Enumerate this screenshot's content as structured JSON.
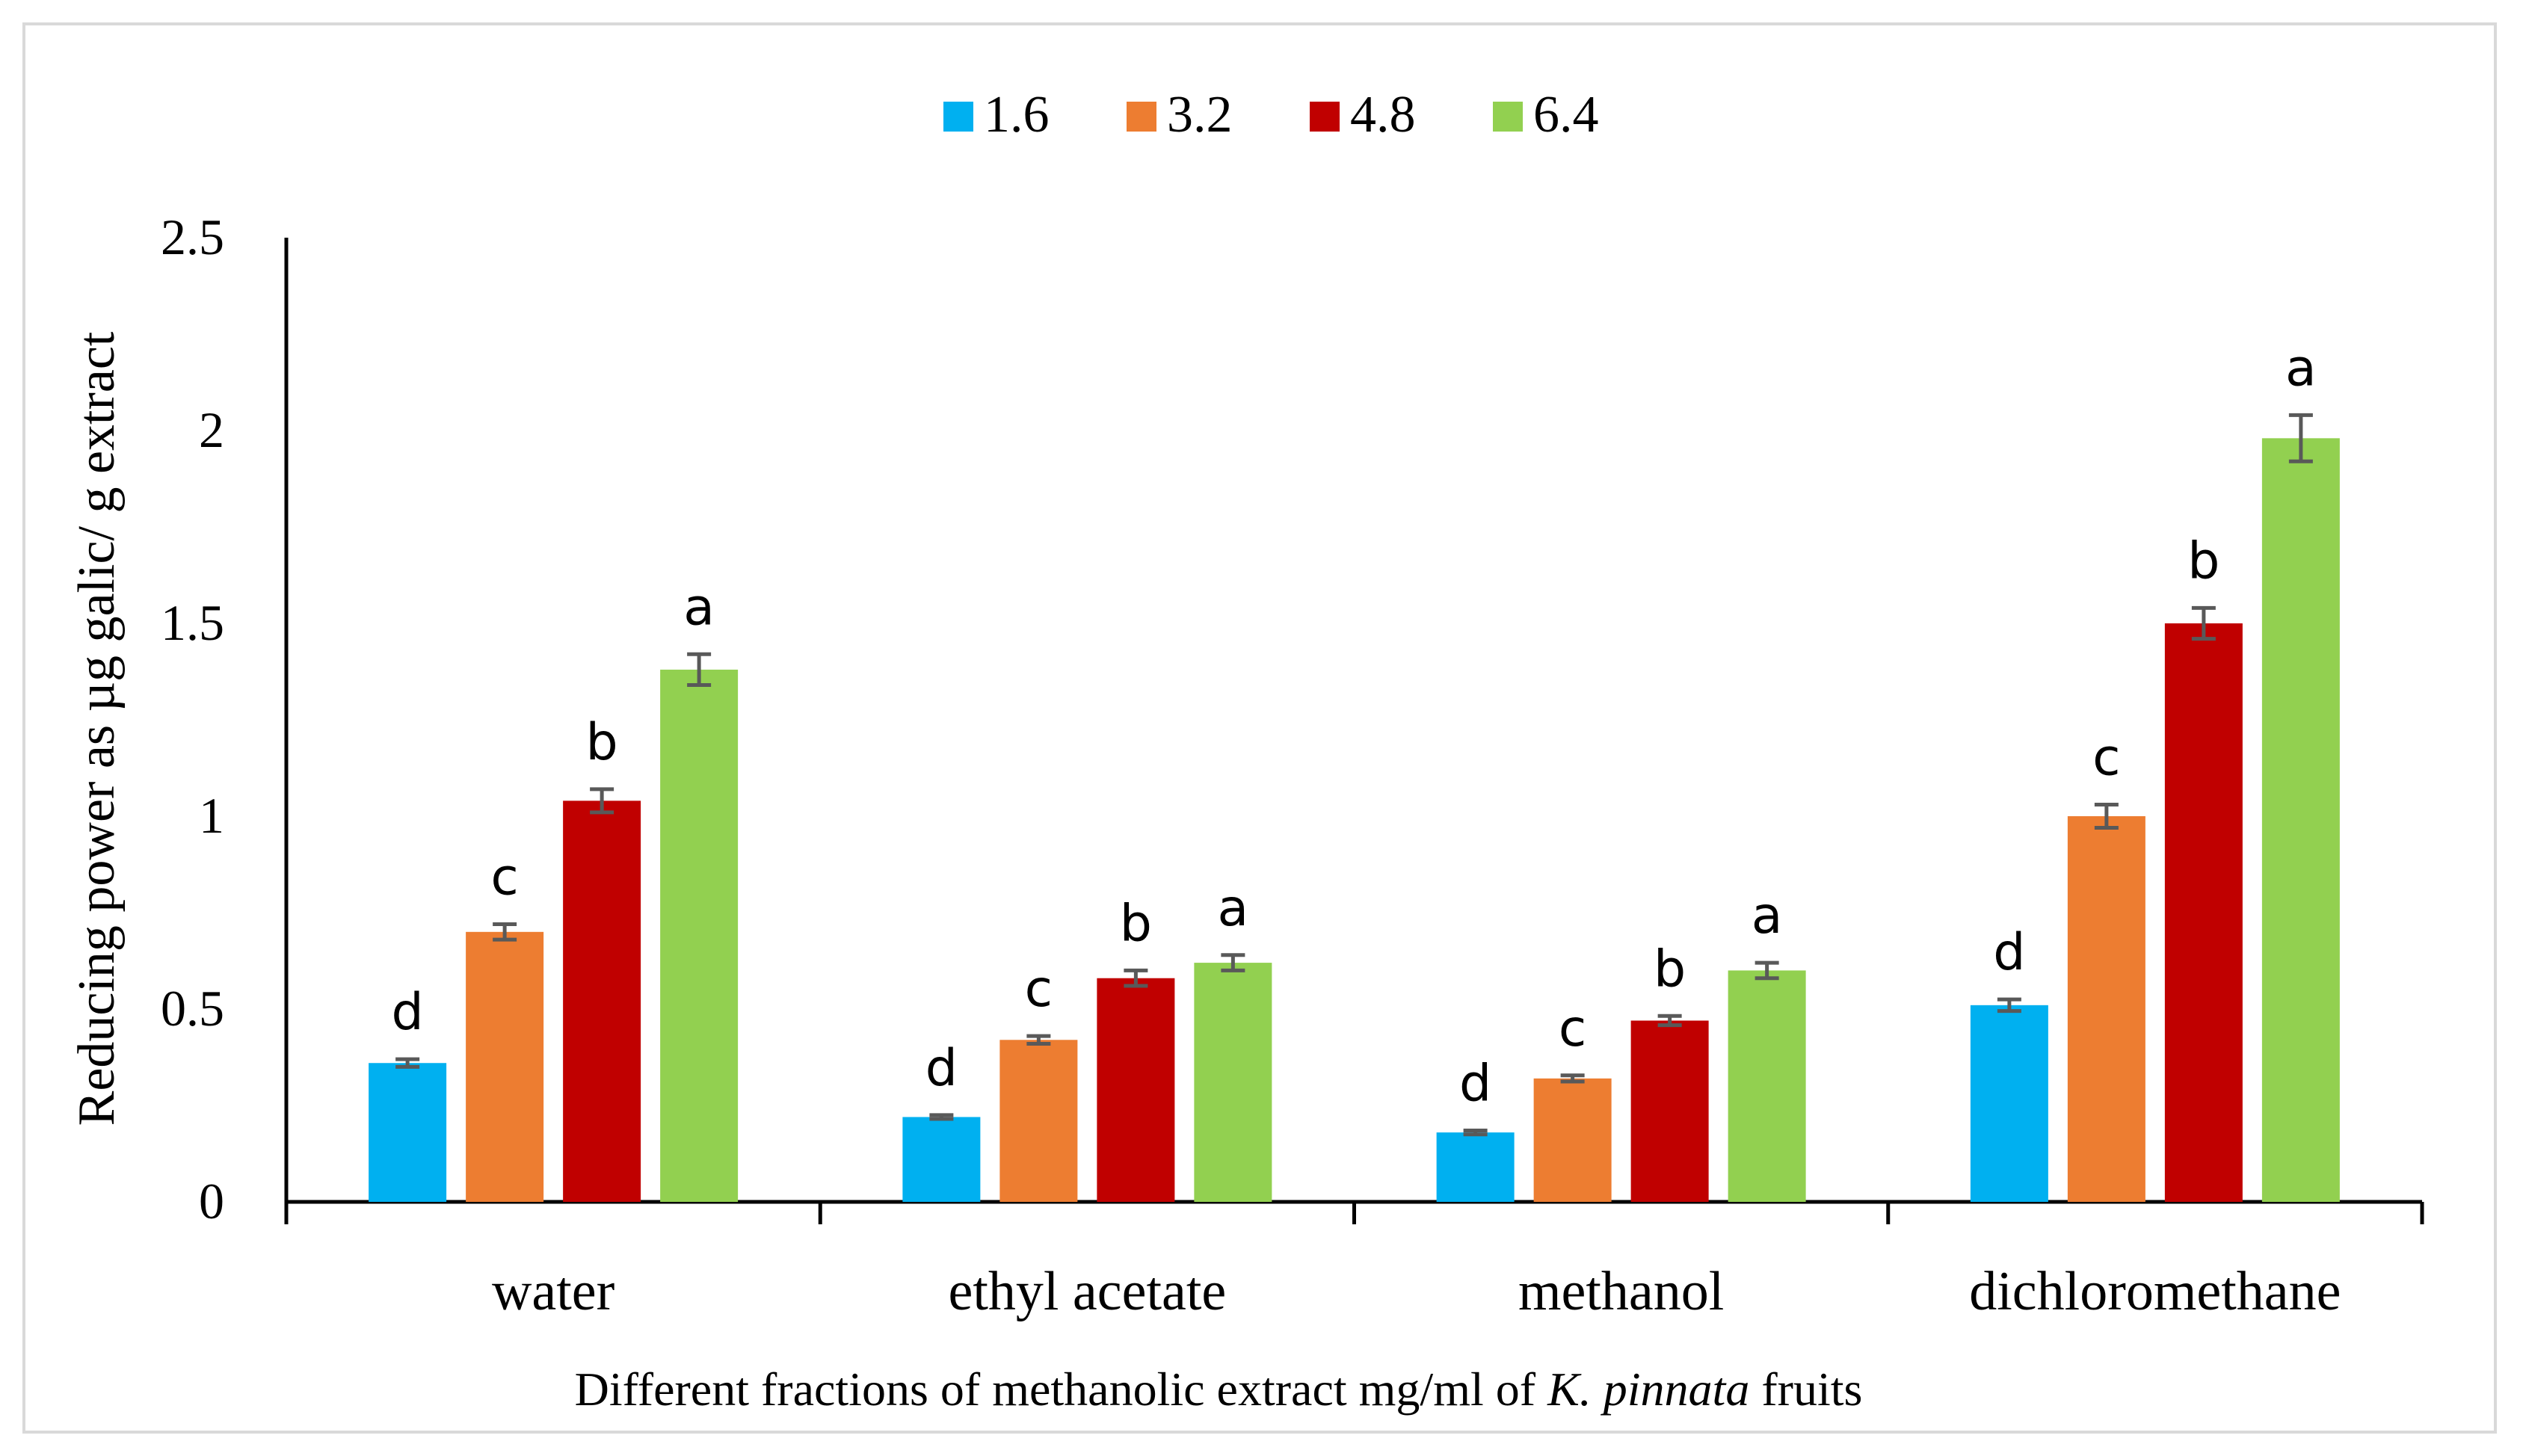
{
  "chart_data": {
    "type": "bar",
    "title": "",
    "xlabel_prefix": "Different fractions of methanolic extract mg/ml of ",
    "xlabel_italic": "K. pinnata",
    "xlabel_suffix": " fruits",
    "ylabel": "Reducing power as µg galic/ g extract",
    "ylim": [
      0,
      2.5
    ],
    "yticks": [
      "0",
      "0.5",
      "1",
      "1.5",
      "2",
      "2.5"
    ],
    "grid": false,
    "legend_position": "top-center",
    "categories": [
      "water",
      "ethyl acetate",
      "methanol",
      "dichloromethane"
    ],
    "series": [
      {
        "name": "1.6",
        "color": "#00b0f0",
        "values": [
          0.36,
          0.22,
          0.18,
          0.51
        ],
        "errors": [
          0.01,
          0.005,
          0.005,
          0.015
        ],
        "letters": [
          "d",
          "d",
          "d",
          "d"
        ]
      },
      {
        "name": "3.2",
        "color": "#ed7d31",
        "values": [
          0.7,
          0.42,
          0.32,
          1.0
        ],
        "errors": [
          0.02,
          0.01,
          0.008,
          0.03
        ],
        "letters": [
          "c",
          "c",
          "c",
          "c"
        ]
      },
      {
        "name": "4.8",
        "color": "#c00000",
        "values": [
          1.04,
          0.58,
          0.47,
          1.5
        ],
        "errors": [
          0.03,
          0.02,
          0.012,
          0.04
        ],
        "letters": [
          "b",
          "b",
          "b",
          "b"
        ]
      },
      {
        "name": "6.4",
        "color": "#92d050",
        "values": [
          1.38,
          0.62,
          0.6,
          1.98
        ],
        "errors": [
          0.04,
          0.02,
          0.02,
          0.06
        ],
        "letters": [
          "a",
          "a",
          "a",
          "a"
        ]
      }
    ]
  }
}
